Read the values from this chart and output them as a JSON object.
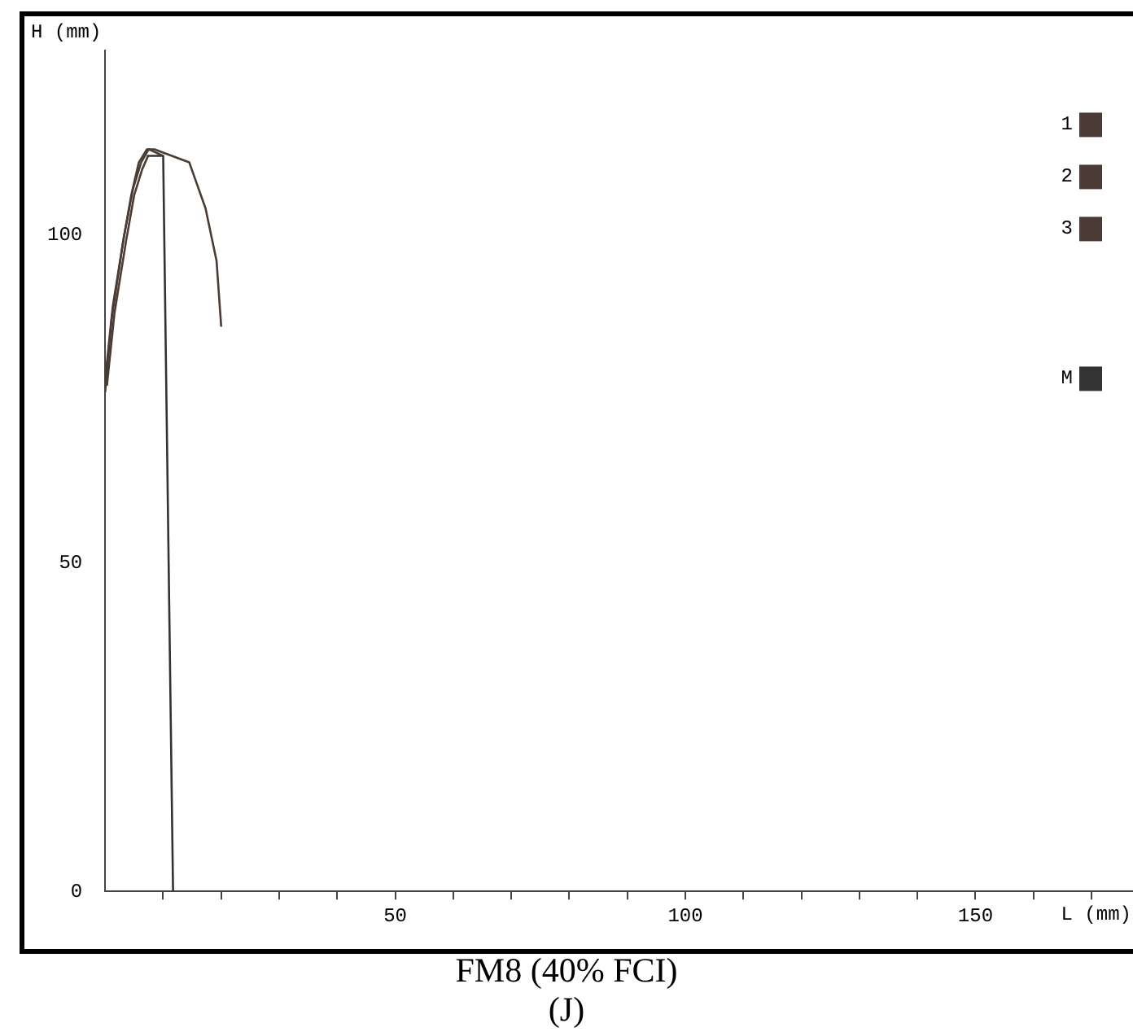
{
  "chart_data": {
    "type": "line",
    "title": "FM8 (40% FCI)",
    "subtitle": "(J)",
    "xlabel": "L (mm)",
    "ylabel": "H (mm)",
    "xlim": [
      0,
      178
    ],
    "ylim": [
      0,
      128
    ],
    "xticks": [
      {
        "value": 10,
        "label": null
      },
      {
        "value": 20,
        "label": null
      },
      {
        "value": 30,
        "label": null
      },
      {
        "value": 40,
        "label": null
      },
      50,
      {
        "value": 60,
        "label": null
      },
      {
        "value": 70,
        "label": null
      },
      {
        "value": 80,
        "label": null
      },
      {
        "value": 90,
        "label": null
      },
      100,
      {
        "value": 110,
        "label": null
      },
      {
        "value": 120,
        "label": null
      },
      {
        "value": 130,
        "label": null
      },
      {
        "value": 140,
        "label": null
      },
      150,
      {
        "value": 160,
        "label": null
      },
      {
        "value": 170,
        "label": null
      }
    ],
    "yticks": [
      0,
      50,
      100
    ],
    "grid": false,
    "legend": "top right",
    "marker": "none",
    "line_style": "solid",
    "series": [
      {
        "name": "1",
        "color": "#4a3c34",
        "x": [
          0,
          1.1,
          3.1,
          4.5,
          5.8,
          7.2,
          8.5,
          14.5,
          17.3,
          19.2,
          20
        ],
        "values": [
          76,
          87,
          99,
          106,
          111,
          113,
          113,
          111,
          104,
          96,
          86
        ]
      },
      {
        "name": "2",
        "color": "#4a3c34",
        "x": [
          0,
          1.3,
          3.3,
          4.8,
          6.2,
          7.5,
          10
        ],
        "values": [
          78,
          89,
          100,
          107,
          111,
          113,
          112
        ]
      },
      {
        "name": "3",
        "color": "#4a3c34",
        "x": [
          0.3,
          1.6,
          3.6,
          5,
          6.4,
          7.4
        ],
        "values": [
          77,
          88,
          99,
          106,
          110,
          112
        ]
      },
      {
        "name": "M",
        "color": "#333333",
        "x": [
          7.2,
          10,
          11.7
        ],
        "values": [
          112,
          112,
          0
        ]
      }
    ]
  }
}
